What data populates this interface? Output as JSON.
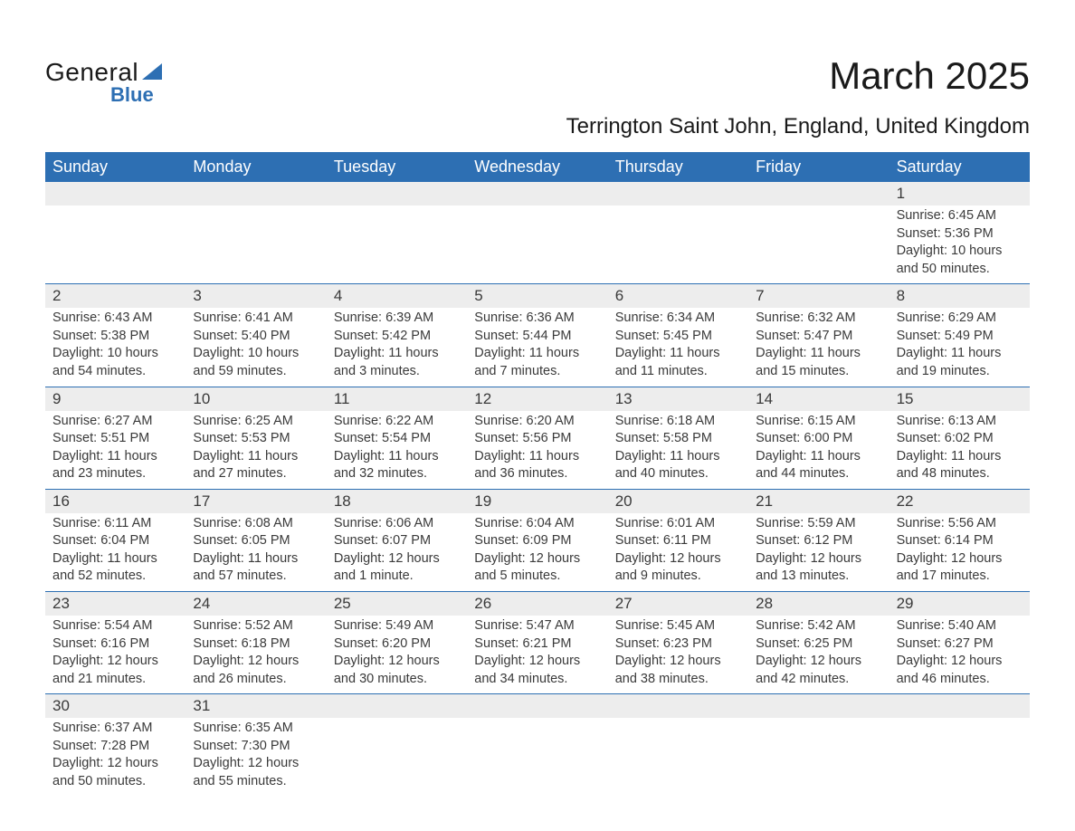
{
  "logo": {
    "text1": "General",
    "text2": "Blue",
    "sail_color": "#2d6fb3"
  },
  "title": "March 2025",
  "location": "Terrington Saint John, England, United Kingdom",
  "colors": {
    "header_bg": "#2d6fb3",
    "header_text": "#ffffff",
    "daterow_bg": "#ededed",
    "week_border": "#2d6fb3",
    "body_text": "#3a3a3a"
  },
  "fonts": {
    "title_pt": 42,
    "location_pt": 24,
    "dayheader_pt": 18,
    "datenum_pt": 17,
    "cell_pt": 14.5
  },
  "day_headers": [
    "Sunday",
    "Monday",
    "Tuesday",
    "Wednesday",
    "Thursday",
    "Friday",
    "Saturday"
  ],
  "weeks": [
    [
      {
        "date": "",
        "sunrise": "",
        "sunset": "",
        "daylight": ""
      },
      {
        "date": "",
        "sunrise": "",
        "sunset": "",
        "daylight": ""
      },
      {
        "date": "",
        "sunrise": "",
        "sunset": "",
        "daylight": ""
      },
      {
        "date": "",
        "sunrise": "",
        "sunset": "",
        "daylight": ""
      },
      {
        "date": "",
        "sunrise": "",
        "sunset": "",
        "daylight": ""
      },
      {
        "date": "",
        "sunrise": "",
        "sunset": "",
        "daylight": ""
      },
      {
        "date": "1",
        "sunrise": "Sunrise: 6:45 AM",
        "sunset": "Sunset: 5:36 PM",
        "daylight": "Daylight: 10 hours and 50 minutes."
      }
    ],
    [
      {
        "date": "2",
        "sunrise": "Sunrise: 6:43 AM",
        "sunset": "Sunset: 5:38 PM",
        "daylight": "Daylight: 10 hours and 54 minutes."
      },
      {
        "date": "3",
        "sunrise": "Sunrise: 6:41 AM",
        "sunset": "Sunset: 5:40 PM",
        "daylight": "Daylight: 10 hours and 59 minutes."
      },
      {
        "date": "4",
        "sunrise": "Sunrise: 6:39 AM",
        "sunset": "Sunset: 5:42 PM",
        "daylight": "Daylight: 11 hours and 3 minutes."
      },
      {
        "date": "5",
        "sunrise": "Sunrise: 6:36 AM",
        "sunset": "Sunset: 5:44 PM",
        "daylight": "Daylight: 11 hours and 7 minutes."
      },
      {
        "date": "6",
        "sunrise": "Sunrise: 6:34 AM",
        "sunset": "Sunset: 5:45 PM",
        "daylight": "Daylight: 11 hours and 11 minutes."
      },
      {
        "date": "7",
        "sunrise": "Sunrise: 6:32 AM",
        "sunset": "Sunset: 5:47 PM",
        "daylight": "Daylight: 11 hours and 15 minutes."
      },
      {
        "date": "8",
        "sunrise": "Sunrise: 6:29 AM",
        "sunset": "Sunset: 5:49 PM",
        "daylight": "Daylight: 11 hours and 19 minutes."
      }
    ],
    [
      {
        "date": "9",
        "sunrise": "Sunrise: 6:27 AM",
        "sunset": "Sunset: 5:51 PM",
        "daylight": "Daylight: 11 hours and 23 minutes."
      },
      {
        "date": "10",
        "sunrise": "Sunrise: 6:25 AM",
        "sunset": "Sunset: 5:53 PM",
        "daylight": "Daylight: 11 hours and 27 minutes."
      },
      {
        "date": "11",
        "sunrise": "Sunrise: 6:22 AM",
        "sunset": "Sunset: 5:54 PM",
        "daylight": "Daylight: 11 hours and 32 minutes."
      },
      {
        "date": "12",
        "sunrise": "Sunrise: 6:20 AM",
        "sunset": "Sunset: 5:56 PM",
        "daylight": "Daylight: 11 hours and 36 minutes."
      },
      {
        "date": "13",
        "sunrise": "Sunrise: 6:18 AM",
        "sunset": "Sunset: 5:58 PM",
        "daylight": "Daylight: 11 hours and 40 minutes."
      },
      {
        "date": "14",
        "sunrise": "Sunrise: 6:15 AM",
        "sunset": "Sunset: 6:00 PM",
        "daylight": "Daylight: 11 hours and 44 minutes."
      },
      {
        "date": "15",
        "sunrise": "Sunrise: 6:13 AM",
        "sunset": "Sunset: 6:02 PM",
        "daylight": "Daylight: 11 hours and 48 minutes."
      }
    ],
    [
      {
        "date": "16",
        "sunrise": "Sunrise: 6:11 AM",
        "sunset": "Sunset: 6:04 PM",
        "daylight": "Daylight: 11 hours and 52 minutes."
      },
      {
        "date": "17",
        "sunrise": "Sunrise: 6:08 AM",
        "sunset": "Sunset: 6:05 PM",
        "daylight": "Daylight: 11 hours and 57 minutes."
      },
      {
        "date": "18",
        "sunrise": "Sunrise: 6:06 AM",
        "sunset": "Sunset: 6:07 PM",
        "daylight": "Daylight: 12 hours and 1 minute."
      },
      {
        "date": "19",
        "sunrise": "Sunrise: 6:04 AM",
        "sunset": "Sunset: 6:09 PM",
        "daylight": "Daylight: 12 hours and 5 minutes."
      },
      {
        "date": "20",
        "sunrise": "Sunrise: 6:01 AM",
        "sunset": "Sunset: 6:11 PM",
        "daylight": "Daylight: 12 hours and 9 minutes."
      },
      {
        "date": "21",
        "sunrise": "Sunrise: 5:59 AM",
        "sunset": "Sunset: 6:12 PM",
        "daylight": "Daylight: 12 hours and 13 minutes."
      },
      {
        "date": "22",
        "sunrise": "Sunrise: 5:56 AM",
        "sunset": "Sunset: 6:14 PM",
        "daylight": "Daylight: 12 hours and 17 minutes."
      }
    ],
    [
      {
        "date": "23",
        "sunrise": "Sunrise: 5:54 AM",
        "sunset": "Sunset: 6:16 PM",
        "daylight": "Daylight: 12 hours and 21 minutes."
      },
      {
        "date": "24",
        "sunrise": "Sunrise: 5:52 AM",
        "sunset": "Sunset: 6:18 PM",
        "daylight": "Daylight: 12 hours and 26 minutes."
      },
      {
        "date": "25",
        "sunrise": "Sunrise: 5:49 AM",
        "sunset": "Sunset: 6:20 PM",
        "daylight": "Daylight: 12 hours and 30 minutes."
      },
      {
        "date": "26",
        "sunrise": "Sunrise: 5:47 AM",
        "sunset": "Sunset: 6:21 PM",
        "daylight": "Daylight: 12 hours and 34 minutes."
      },
      {
        "date": "27",
        "sunrise": "Sunrise: 5:45 AM",
        "sunset": "Sunset: 6:23 PM",
        "daylight": "Daylight: 12 hours and 38 minutes."
      },
      {
        "date": "28",
        "sunrise": "Sunrise: 5:42 AM",
        "sunset": "Sunset: 6:25 PM",
        "daylight": "Daylight: 12 hours and 42 minutes."
      },
      {
        "date": "29",
        "sunrise": "Sunrise: 5:40 AM",
        "sunset": "Sunset: 6:27 PM",
        "daylight": "Daylight: 12 hours and 46 minutes."
      }
    ],
    [
      {
        "date": "30",
        "sunrise": "Sunrise: 6:37 AM",
        "sunset": "Sunset: 7:28 PM",
        "daylight": "Daylight: 12 hours and 50 minutes."
      },
      {
        "date": "31",
        "sunrise": "Sunrise: 6:35 AM",
        "sunset": "Sunset: 7:30 PM",
        "daylight": "Daylight: 12 hours and 55 minutes."
      },
      {
        "date": "",
        "sunrise": "",
        "sunset": "",
        "daylight": ""
      },
      {
        "date": "",
        "sunrise": "",
        "sunset": "",
        "daylight": ""
      },
      {
        "date": "",
        "sunrise": "",
        "sunset": "",
        "daylight": ""
      },
      {
        "date": "",
        "sunrise": "",
        "sunset": "",
        "daylight": ""
      },
      {
        "date": "",
        "sunrise": "",
        "sunset": "",
        "daylight": ""
      }
    ]
  ]
}
